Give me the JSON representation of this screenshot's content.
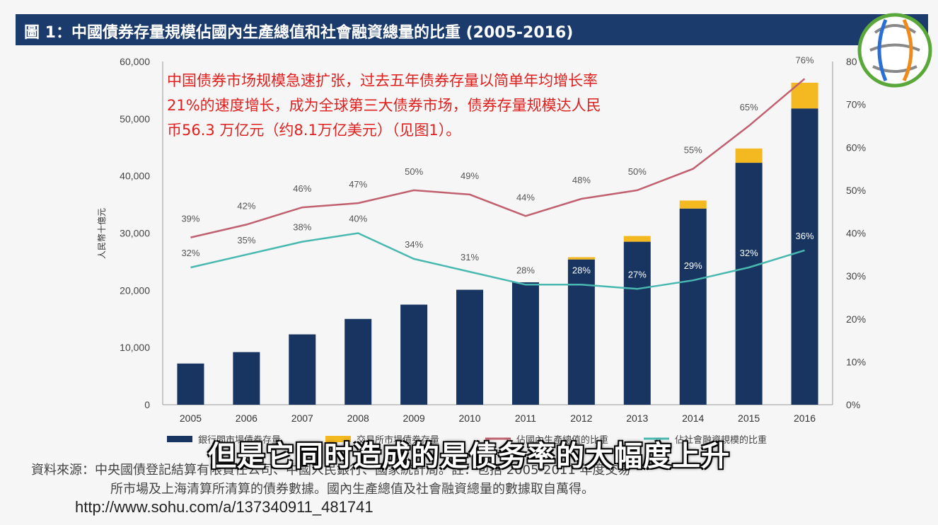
{
  "title": "圖 1：中國債券存量規模佔國內生產總值和社會融資總量的比重 (2005-2016)",
  "callout": [
    "中国债券市场规模急速扩张，过去五年债券存量以简单年均增长率",
    "21%的速度增长，成为全球第三大债券市场，债券存量规模达人民",
    "币56.3 万亿元（约8.1万亿美元）（见图1）。"
  ],
  "source": {
    "line1": "資料來源：中央國債登記結算有限責任公司、中國人民銀行、國家統計局。註：包括 2005-2011 年度交易",
    "line2": "所市場及上海清算所清算的債券數據。國內生產總值及社會融資總量的數據取自萬得。"
  },
  "subtitle_caption": "但是它同时造成的是债务率的大幅度上升",
  "url": "http://www.sohu.com/a/137340911_481741",
  "colors": {
    "title_bg": "#1a3b6b",
    "bank_bar": "#173560",
    "exchange_bar": "#f4b820",
    "gdp_line": "#c1606e",
    "social_line": "#49b8b0",
    "callout_text": "#e0201e"
  },
  "chart_data": {
    "type": "bar",
    "categories": [
      "2005",
      "2006",
      "2007",
      "2008",
      "2009",
      "2010",
      "2011",
      "2012",
      "2013",
      "2014",
      "2015",
      "2016"
    ],
    "ylabel": "人民幣十億元",
    "ylim": [
      0,
      60000
    ],
    "y_ticks": [
      "0",
      "10,000",
      "20,000",
      "30,000",
      "40,000",
      "50,000",
      "60,000"
    ],
    "y2lim": [
      0,
      80
    ],
    "y2_ticks": [
      "0%",
      "10%",
      "20%",
      "30%",
      "40%",
      "50%",
      "60%",
      "70%",
      "80"
    ],
    "stacked": true,
    "grid": false,
    "legend_position": "bottom",
    "series": [
      {
        "name": "銀行間市場債券存量",
        "kind": "bar",
        "values": [
          7200,
          9200,
          12300,
          15000,
          17500,
          20100,
          21400,
          25400,
          28500,
          34300,
          42300,
          51800
        ]
      },
      {
        "name": "交易所市場債券存量",
        "kind": "bar",
        "values": [
          0,
          0,
          0,
          0,
          0,
          0,
          0,
          400,
          1000,
          1400,
          2500,
          4500
        ]
      },
      {
        "name": "佔國內生產總值的比重",
        "kind": "line",
        "axis": "right",
        "values": [
          39,
          42,
          46,
          47,
          50,
          49,
          44,
          48,
          50,
          55,
          65,
          76
        ],
        "labels": [
          "39%",
          "42%",
          "46%",
          "47%",
          "50%",
          "49%",
          "44%",
          "48%",
          "50%",
          "55%",
          "65%",
          "76%"
        ]
      },
      {
        "name": "佔社會融資規模的比重",
        "kind": "line",
        "axis": "right",
        "values": [
          32,
          35,
          38,
          40,
          34,
          31,
          28,
          28,
          27,
          29,
          32,
          36
        ],
        "labels": [
          "32%",
          "35%",
          "38%",
          "40%",
          "34%",
          "31%",
          "28%",
          "28%",
          "27%",
          "29%",
          "32%",
          "36%"
        ]
      }
    ]
  }
}
